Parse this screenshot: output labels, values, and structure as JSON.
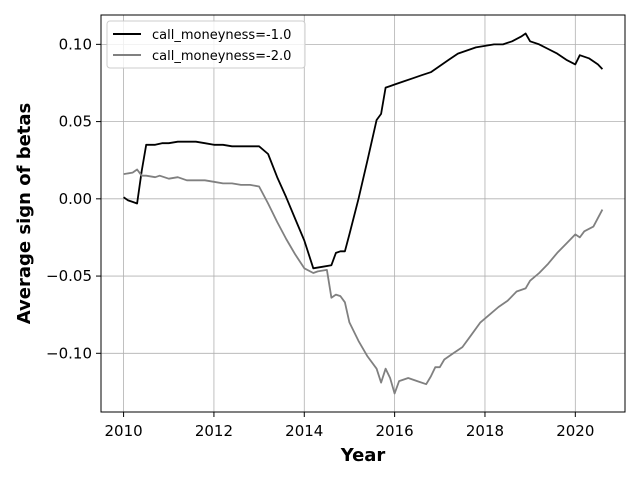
{
  "chart_data": {
    "type": "line",
    "title": "",
    "xlabel": "Year",
    "ylabel": "Average sign of betas",
    "xlim": [
      2009.5,
      2021.1
    ],
    "ylim": [
      -0.138,
      0.119
    ],
    "xticks": [
      2010,
      2012,
      2014,
      2016,
      2018,
      2020
    ],
    "xtick_labels": [
      "2010",
      "2012",
      "2014",
      "2016",
      "2018",
      "2020"
    ],
    "yticks": [
      0.1,
      0.05,
      0.0,
      -0.05,
      -0.1
    ],
    "ytick_labels": [
      "0.10",
      "0.05",
      "0.00",
      "−0.05",
      "−0.10"
    ],
    "grid": true,
    "legend_position": "top-left",
    "series": [
      {
        "name": "call_moneyness=-1.0",
        "color": "#000000",
        "x": [
          2010.0,
          2010.1,
          2010.2,
          2010.3,
          2010.4,
          2010.5,
          2010.6,
          2010.7,
          2010.85,
          2011.0,
          2011.2,
          2011.4,
          2011.6,
          2011.8,
          2012.0,
          2012.2,
          2012.4,
          2012.6,
          2012.8,
          2013.0,
          2013.2,
          2013.4,
          2013.6,
          2013.8,
          2014.0,
          2014.2,
          2014.4,
          2014.6,
          2014.7,
          2014.8,
          2014.9,
          2015.0,
          2015.2,
          2015.4,
          2015.6,
          2015.7,
          2015.8,
          2015.9,
          2016.0,
          2016.2,
          2016.4,
          2016.6,
          2016.8,
          2017.0,
          2017.2,
          2017.4,
          2017.6,
          2017.8,
          2018.0,
          2018.2,
          2018.4,
          2018.6,
          2018.8,
          2018.9,
          2019.0,
          2019.2,
          2019.4,
          2019.6,
          2019.8,
          2020.0,
          2020.1,
          2020.3,
          2020.5,
          2020.6
        ],
        "y": [
          0.001,
          -0.001,
          -0.002,
          -0.003,
          0.018,
          0.035,
          0.035,
          0.035,
          0.036,
          0.036,
          0.037,
          0.037,
          0.037,
          0.036,
          0.035,
          0.035,
          0.034,
          0.034,
          0.034,
          0.034,
          0.029,
          0.014,
          0.001,
          -0.013,
          -0.027,
          -0.045,
          -0.044,
          -0.043,
          -0.035,
          -0.034,
          -0.034,
          -0.023,
          0.0,
          0.025,
          0.051,
          0.055,
          0.072,
          0.073,
          0.074,
          0.076,
          0.078,
          0.08,
          0.082,
          0.086,
          0.09,
          0.094,
          0.096,
          0.098,
          0.099,
          0.1,
          0.1,
          0.102,
          0.105,
          0.107,
          0.102,
          0.1,
          0.097,
          0.094,
          0.09,
          0.087,
          0.093,
          0.091,
          0.087,
          0.084
        ]
      },
      {
        "name": "call_moneyness=-2.0",
        "color": "#808080",
        "x": [
          2010.0,
          2010.2,
          2010.3,
          2010.4,
          2010.5,
          2010.7,
          2010.8,
          2011.0,
          2011.2,
          2011.4,
          2011.6,
          2011.8,
          2012.0,
          2012.2,
          2012.4,
          2012.6,
          2012.8,
          2013.0,
          2013.2,
          2013.4,
          2013.6,
          2013.8,
          2014.0,
          2014.2,
          2014.3,
          2014.5,
          2014.6,
          2014.7,
          2014.8,
          2014.9,
          2015.0,
          2015.2,
          2015.4,
          2015.6,
          2015.7,
          2015.8,
          2015.9,
          2016.0,
          2016.1,
          2016.3,
          2016.5,
          2016.7,
          2016.8,
          2016.9,
          2017.0,
          2017.1,
          2017.3,
          2017.5,
          2017.7,
          2017.9,
          2018.1,
          2018.3,
          2018.5,
          2018.7,
          2018.9,
          2019.0,
          2019.2,
          2019.4,
          2019.6,
          2019.8,
          2020.0,
          2020.1,
          2020.2,
          2020.4,
          2020.6
        ],
        "y": [
          0.016,
          0.017,
          0.019,
          0.015,
          0.015,
          0.014,
          0.015,
          0.013,
          0.014,
          0.012,
          0.012,
          0.012,
          0.011,
          0.01,
          0.01,
          0.009,
          0.009,
          0.008,
          -0.003,
          -0.015,
          -0.026,
          -0.036,
          -0.045,
          -0.048,
          -0.047,
          -0.046,
          -0.064,
          -0.062,
          -0.063,
          -0.067,
          -0.08,
          -0.092,
          -0.102,
          -0.11,
          -0.119,
          -0.11,
          -0.116,
          -0.126,
          -0.118,
          -0.116,
          -0.118,
          -0.12,
          -0.115,
          -0.109,
          -0.109,
          -0.104,
          -0.1,
          -0.096,
          -0.088,
          -0.08,
          -0.075,
          -0.07,
          -0.066,
          -0.06,
          -0.058,
          -0.053,
          -0.048,
          -0.042,
          -0.035,
          -0.029,
          -0.023,
          -0.025,
          -0.021,
          -0.018,
          -0.007
        ]
      }
    ]
  }
}
